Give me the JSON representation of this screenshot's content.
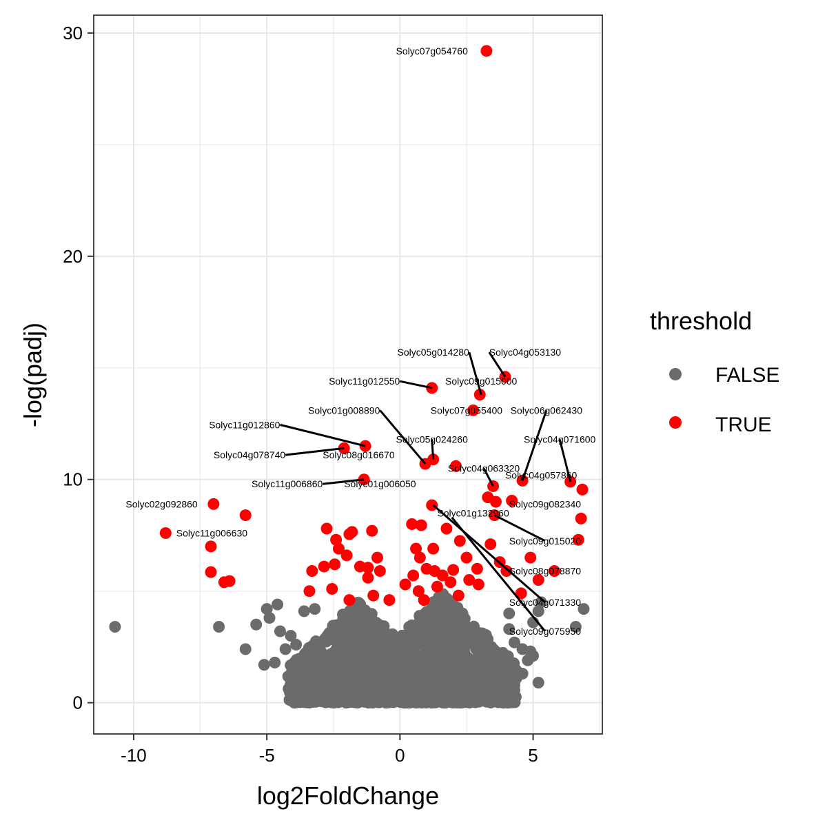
{
  "chart_data": {
    "type": "scatter",
    "title": "",
    "xlabel": "log2FoldChange",
    "ylabel": "-log(padj)",
    "xlim": [
      -11.5,
      7.6
    ],
    "ylim": [
      -1.4,
      30.8
    ],
    "xticks": [
      -10,
      -5,
      0,
      5
    ],
    "xtick_labels": [
      "-10",
      "-5",
      "0",
      "5"
    ],
    "yticks": [
      0,
      10,
      20,
      30
    ],
    "ytick_labels": [
      "0",
      "10",
      "20",
      "30"
    ],
    "grid": true,
    "legend": {
      "title": "threshold",
      "position": "right",
      "entries": [
        {
          "label": "FALSE",
          "color": "#6b6b6b"
        },
        {
          "label": "TRUE",
          "color": "#ff0000"
        }
      ]
    },
    "series": [
      {
        "name": "FALSE",
        "color": "#6b6b6b",
        "outliers": [
          [
            -10.7,
            3.4
          ],
          [
            -6.8,
            3.4
          ],
          [
            -5.8,
            2.4
          ],
          [
            -5.4,
            3.5
          ],
          [
            -5.1,
            1.7
          ],
          [
            -4.7,
            1.8
          ],
          [
            -5.0,
            4.2
          ],
          [
            -4.6,
            4.4
          ],
          [
            -4.9,
            3.8
          ],
          [
            -4.5,
            3.2
          ],
          [
            -4.3,
            2.4
          ],
          [
            -4.1,
            3.0
          ],
          [
            -3.9,
            2.6
          ],
          [
            -3.6,
            4.1
          ],
          [
            -3.2,
            4.2
          ],
          [
            -3.5,
            1.9
          ],
          [
            -3.9,
            1.4
          ],
          [
            -3.7,
            0.6
          ],
          [
            4.1,
            4.0
          ],
          [
            4.3,
            2.7
          ],
          [
            4.6,
            2.4
          ],
          [
            4.9,
            2.3
          ],
          [
            5.0,
            3.6
          ],
          [
            5.2,
            4.1
          ],
          [
            5.2,
            0.9
          ],
          [
            4.3,
            0.9
          ],
          [
            4.6,
            1.3
          ],
          [
            6.6,
            3.4
          ],
          [
            6.9,
            4.2
          ],
          [
            5.3,
            4.5
          ],
          [
            4.8,
            1.9
          ],
          [
            5.0,
            2.1
          ],
          [
            4.1,
            3.3
          ]
        ],
        "clusters": [
          {
            "x_center": -1.6,
            "x_spread": 2.6,
            "y_max": 4.6
          },
          {
            "x_center": 1.6,
            "x_spread": 2.8,
            "y_max": 4.9
          }
        ]
      },
      {
        "name": "TRUE",
        "color": "#ff0000",
        "points": [
          [
            3.25,
            29.2
          ],
          [
            3.95,
            14.6
          ],
          [
            1.2,
            14.1
          ],
          [
            3.0,
            13.8
          ],
          [
            2.75,
            13.1
          ],
          [
            -1.3,
            11.5
          ],
          [
            -2.1,
            11.4
          ],
          [
            1.25,
            10.9
          ],
          [
            0.95,
            10.7
          ],
          [
            2.1,
            10.6
          ],
          [
            -1.35,
            10.0
          ],
          [
            4.6,
            9.95
          ],
          [
            6.4,
            9.9
          ],
          [
            6.85,
            9.55
          ],
          [
            3.5,
            9.7
          ],
          [
            3.3,
            9.2
          ],
          [
            3.6,
            9.0
          ],
          [
            4.2,
            9.05
          ],
          [
            -7.0,
            8.9
          ],
          [
            1.2,
            8.85
          ],
          [
            -5.8,
            8.4
          ],
          [
            3.55,
            8.4
          ],
          [
            6.8,
            8.25
          ],
          [
            0.45,
            8.0
          ],
          [
            0.8,
            7.95
          ],
          [
            -8.8,
            7.6
          ],
          [
            -2.75,
            7.8
          ],
          [
            -1.8,
            7.65
          ],
          [
            -1.05,
            7.7
          ],
          [
            -1.9,
            7.55
          ],
          [
            -2.4,
            7.3
          ],
          [
            1.75,
            7.8
          ],
          [
            2.25,
            7.25
          ],
          [
            3.4,
            7.1
          ],
          [
            6.7,
            7.3
          ],
          [
            -7.1,
            7.0
          ],
          [
            -2.3,
            6.9
          ],
          [
            1.25,
            6.9
          ],
          [
            0.75,
            6.5
          ],
          [
            0.6,
            6.9
          ],
          [
            -2.0,
            6.6
          ],
          [
            -0.85,
            6.5
          ],
          [
            1.0,
            6.0
          ],
          [
            2.5,
            6.5
          ],
          [
            3.75,
            6.3
          ],
          [
            4.9,
            6.5
          ],
          [
            -7.1,
            5.85
          ],
          [
            -6.4,
            5.45
          ],
          [
            -6.6,
            5.4
          ],
          [
            -3.3,
            5.9
          ],
          [
            -2.85,
            6.1
          ],
          [
            -2.45,
            6.2
          ],
          [
            -1.5,
            6.1
          ],
          [
            -1.2,
            6.05
          ],
          [
            -0.75,
            5.9
          ],
          [
            0.5,
            5.7
          ],
          [
            1.3,
            5.9
          ],
          [
            1.6,
            5.7
          ],
          [
            2.0,
            5.95
          ],
          [
            2.9,
            6.0
          ],
          [
            4.0,
            5.9
          ],
          [
            5.8,
            5.9
          ],
          [
            5.2,
            5.5
          ],
          [
            -3.4,
            5.0
          ],
          [
            -2.55,
            5.1
          ],
          [
            -1.0,
            4.8
          ],
          [
            -0.4,
            4.6
          ],
          [
            0.7,
            5.0
          ],
          [
            1.4,
            5.2
          ],
          [
            2.2,
            4.8
          ],
          [
            2.95,
            5.3
          ],
          [
            4.55,
            4.9
          ],
          [
            -1.9,
            4.6
          ],
          [
            0.9,
            4.6
          ],
          [
            -1.2,
            5.6
          ],
          [
            0.2,
            5.3
          ],
          [
            1.9,
            5.4
          ],
          [
            2.6,
            5.5
          ]
        ]
      }
    ],
    "labels": [
      {
        "text": "Solyc07g054760",
        "point": [
          3.25,
          29.2
        ],
        "anchor": "end",
        "pos": [
          2.55,
          29.2
        ],
        "line": false
      },
      {
        "text": "Solyc05g014280",
        "point": [
          3.05,
          13.8
        ],
        "anchor": "end",
        "pos": [
          2.6,
          15.7
        ],
        "line": true
      },
      {
        "text": "Solyc04g053130",
        "point": [
          3.95,
          14.6
        ],
        "anchor": "start",
        "pos": [
          3.35,
          15.7
        ],
        "line": true
      },
      {
        "text": "Solyc09g015000",
        "point": [
          3.05,
          13.8
        ],
        "anchor": "middle",
        "pos": [
          3.05,
          14.4
        ],
        "line": false
      },
      {
        "text": "Solyc11g012550",
        "point": [
          1.2,
          14.1
        ],
        "anchor": "end",
        "pos": [
          0.0,
          14.4
        ],
        "line": true
      },
      {
        "text": "Solyc07g055400",
        "point": [
          2.75,
          13.1
        ],
        "anchor": "middle",
        "pos": [
          2.5,
          13.1
        ],
        "line": false
      },
      {
        "text": "Solyc06g062430",
        "point": [
          4.6,
          9.95
        ],
        "anchor": "middle",
        "pos": [
          5.5,
          13.1
        ],
        "line": true
      },
      {
        "text": "Solyc01g008890",
        "point": [
          0.95,
          10.7
        ],
        "anchor": "end",
        "pos": [
          -0.75,
          13.1
        ],
        "line": true
      },
      {
        "text": "Solyc11g012860",
        "point": [
          -1.3,
          11.5
        ],
        "anchor": "end",
        "pos": [
          -4.5,
          12.45
        ],
        "line": true
      },
      {
        "text": "Solyc05g024260",
        "point": [
          1.25,
          10.9
        ],
        "anchor": "middle",
        "pos": [
          1.2,
          11.8
        ],
        "line": true
      },
      {
        "text": "Solyc04g071600",
        "point": [
          6.4,
          9.9
        ],
        "anchor": "middle",
        "pos": [
          6.0,
          11.8
        ],
        "line": true
      },
      {
        "text": "Solyc04g078740",
        "point": [
          -2.1,
          11.4
        ],
        "anchor": "end",
        "pos": [
          -4.3,
          11.1
        ],
        "line": true
      },
      {
        "text": "Solyc08g016670",
        "point": [
          -2.1,
          11.4
        ],
        "anchor": "middle",
        "pos": [
          -1.55,
          11.1
        ],
        "line": false
      },
      {
        "text": "Solyc04g063320",
        "point": [
          3.5,
          9.7
        ],
        "anchor": "middle",
        "pos": [
          3.15,
          10.5
        ],
        "line": true
      },
      {
        "text": "Solyc04g057860",
        "point": [
          6.4,
          9.9
        ],
        "anchor": "middle",
        "pos": [
          5.3,
          10.2
        ],
        "line": false
      },
      {
        "text": "Solyc11g006860",
        "point": [
          -1.35,
          10.0
        ],
        "anchor": "end",
        "pos": [
          -2.9,
          9.8
        ],
        "line": true
      },
      {
        "text": "Solyc01g006050",
        "point": [
          -1.35,
          10.0
        ],
        "anchor": "middle",
        "pos": [
          -0.75,
          9.8
        ],
        "line": false
      },
      {
        "text": "Solyc02g092860",
        "point": [
          -7.0,
          8.9
        ],
        "anchor": "end",
        "pos": [
          -7.6,
          8.9
        ],
        "line": false
      },
      {
        "text": "Solyc09g082340",
        "point": [
          4.2,
          9.05
        ],
        "anchor": "middle",
        "pos": [
          5.45,
          8.9
        ],
        "line": false
      },
      {
        "text": "Solyc01g132960",
        "point": [
          1.2,
          8.85
        ],
        "anchor": "middle",
        "pos": [
          2.75,
          8.5
        ],
        "line": false
      },
      {
        "text": "Solyc11g006630",
        "point": [
          -8.8,
          7.6
        ],
        "anchor": "start",
        "pos": [
          -8.4,
          7.6
        ],
        "line": false
      },
      {
        "text": "Solyc09g015020",
        "point": [
          3.55,
          8.4
        ],
        "anchor": "middle",
        "pos": [
          5.45,
          7.25
        ],
        "line": true
      },
      {
        "text": "Solyc08g078870",
        "point": [
          3.75,
          6.3
        ],
        "anchor": "middle",
        "pos": [
          5.45,
          5.9
        ],
        "line": false
      },
      {
        "text": "Solyc04g071330",
        "point": [
          1.25,
          8.85
        ],
        "anchor": "middle",
        "pos": [
          5.45,
          4.5
        ],
        "line": true
      },
      {
        "text": "Solyc09g075950",
        "point": [
          1.95,
          8.3
        ],
        "anchor": "middle",
        "pos": [
          5.45,
          3.2
        ],
        "line": true
      }
    ]
  }
}
